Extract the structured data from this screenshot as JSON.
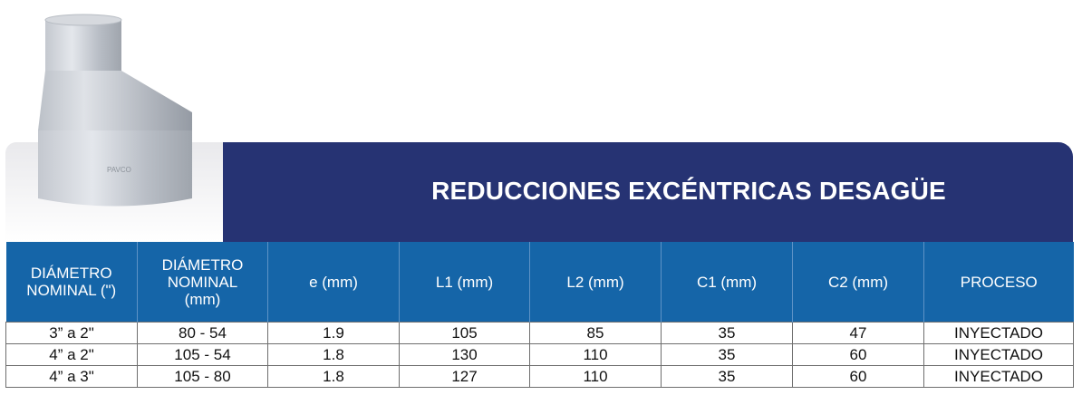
{
  "title": "REDUCCIONES EXCÉNTRICAS DESAGÜE",
  "product_image": {
    "brand_mark": "PAVCO"
  },
  "colors": {
    "banner": "#263373",
    "header": "#1565a8"
  },
  "table": {
    "headers": [
      [
        "DIÁMETRO",
        "NOMINAL (\")"
      ],
      [
        "DIÁMETRO",
        "NOMINAL",
        "(mm)"
      ],
      [
        "e (mm)"
      ],
      [
        "L1 (mm)"
      ],
      [
        "L2 (mm)"
      ],
      [
        "C1 (mm)"
      ],
      [
        "C2 (mm)"
      ],
      [
        "PROCESO"
      ]
    ],
    "rows": [
      [
        "3” a 2\"",
        "80 - 54",
        "1.9",
        "105",
        "85",
        "35",
        "47",
        "INYECTADO"
      ],
      [
        "4” a 2\"",
        "105 - 54",
        "1.8",
        "130",
        "110",
        "35",
        "60",
        "INYECTADO"
      ],
      [
        "4” a 3\"",
        "105 - 80",
        "1.8",
        "127",
        "110",
        "35",
        "60",
        "INYECTADO"
      ]
    ]
  }
}
